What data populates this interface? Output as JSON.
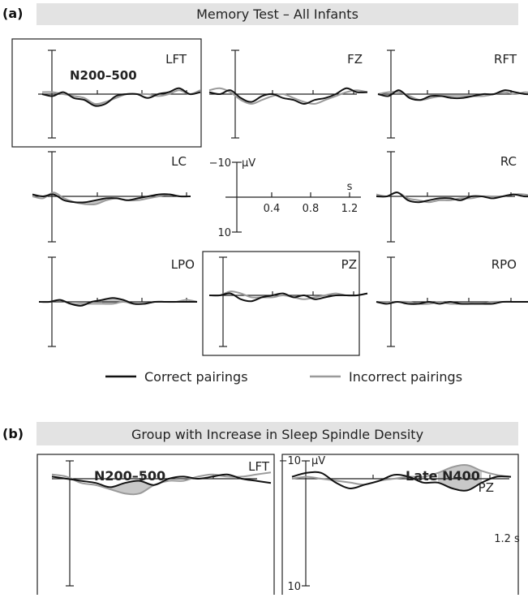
{
  "figure": {
    "part_a": {
      "tag": "(a)",
      "header": "Memory Test – All Infants",
      "colors": {
        "header_bg": "#e3e3e3",
        "correct": "#111111",
        "incorrect": "#9a9a9a",
        "shade": "#c8c8c8"
      }
    },
    "part_b": {
      "tag": "(b)",
      "header": "Group with Increase in Sleep Spindle Density"
    },
    "scale_key": {
      "top_label": "−10",
      "unit": "μV",
      "bottom_label": "10",
      "time_unit": "s",
      "ticks": [
        "0.4",
        "0.8",
        "1.2"
      ]
    },
    "legend": {
      "correct": "Correct pairings",
      "incorrect": "Incorrect pairings"
    }
  },
  "chart_data": [
    {
      "type": "line",
      "panel": "a",
      "x_unit": "s",
      "y_unit": "μV (negative up)",
      "xlim": [
        -0.2,
        1.3
      ],
      "ylim": [
        -10,
        10
      ],
      "highlight_window": "N200–500",
      "x": [
        -0.2,
        -0.1,
        0.0,
        0.1,
        0.2,
        0.3,
        0.4,
        0.5,
        0.6,
        0.7,
        0.8,
        0.9,
        1.0,
        1.1,
        1.2,
        1.3
      ],
      "channels": [
        {
          "name": "LFT",
          "label": "N200–500",
          "boxed": true,
          "shaded": [
            0.2,
            0.5
          ],
          "correct": [
            0,
            1,
            -1,
            2,
            3,
            6,
            5,
            1,
            0,
            0,
            2,
            0,
            -1,
            -3,
            0,
            -1
          ],
          "incorrect": [
            -1,
            -1,
            0,
            1,
            2,
            5,
            4,
            2,
            0,
            0,
            0,
            1,
            0,
            -2,
            0,
            -2
          ]
        },
        {
          "name": "FZ",
          "boxed": false,
          "correct": [
            -1,
            0,
            -2,
            2,
            4,
            1,
            0,
            2,
            3,
            5,
            3,
            2,
            0,
            -3,
            -1,
            -1
          ],
          "incorrect": [
            -2,
            -3,
            -1,
            3,
            5,
            3,
            1,
            0,
            2,
            4,
            5,
            3,
            1,
            -1,
            -2,
            -1
          ]
        },
        {
          "name": "RFT",
          "boxed": false,
          "correct": [
            0,
            1,
            -2,
            2,
            3,
            1,
            1,
            2,
            2,
            1,
            0,
            0,
            -2,
            -1,
            0,
            0
          ],
          "incorrect": [
            0,
            -1,
            -1,
            1,
            3,
            2,
            1,
            1,
            1,
            1,
            1,
            0,
            -1,
            0,
            -1,
            0
          ]
        },
        {
          "name": "LC",
          "boxed": false,
          "shaded": [
            0.2,
            0.5
          ],
          "correct": [
            -1,
            0,
            -1,
            2,
            3,
            3,
            2,
            1,
            1,
            2,
            1,
            0,
            -1,
            -1,
            0,
            0
          ],
          "incorrect": [
            0,
            1,
            -2,
            1,
            3,
            4,
            4,
            2,
            1,
            2,
            2,
            1,
            0,
            -1,
            0,
            0
          ]
        },
        {
          "name": "RC",
          "boxed": false,
          "correct": [
            0,
            0,
            -2,
            2,
            3,
            2,
            1,
            1,
            2,
            0,
            0,
            1,
            0,
            -1,
            0,
            0
          ],
          "incorrect": [
            -1,
            0,
            -2,
            1,
            2,
            3,
            2,
            2,
            1,
            1,
            0,
            0,
            0,
            -1,
            -1,
            0
          ]
        },
        {
          "name": "LPO",
          "boxed": false,
          "shaded": [
            0.4,
            0.7
          ],
          "correct": [
            0,
            0,
            -1,
            1,
            2,
            0,
            -1,
            -2,
            -1,
            1,
            1,
            0,
            0,
            0,
            0,
            0
          ],
          "incorrect": [
            0,
            0,
            -1,
            1,
            1,
            1,
            1,
            1,
            0,
            1,
            1,
            0,
            0,
            0,
            -1,
            0
          ]
        },
        {
          "name": "PZ",
          "boxed": true,
          "correct": [
            0,
            0,
            -1,
            2,
            3,
            1,
            0,
            -1,
            1,
            0,
            2,
            1,
            0,
            0,
            0,
            -1
          ],
          "incorrect": [
            0,
            0,
            -2,
            -1,
            1,
            1,
            1,
            0,
            1,
            2,
            1,
            0,
            -1,
            0,
            0,
            -1
          ]
        },
        {
          "name": "RPO",
          "boxed": false,
          "correct": [
            0,
            1,
            0,
            1,
            1,
            0,
            1,
            0,
            1,
            1,
            1,
            1,
            0,
            0,
            0,
            0
          ],
          "incorrect": [
            0,
            0,
            0,
            0,
            1,
            1,
            0,
            1,
            1,
            1,
            1,
            0,
            0,
            0,
            0,
            0
          ]
        }
      ]
    },
    {
      "type": "line",
      "panel": "b",
      "x_unit": "s",
      "y_unit": "μV (negative up)",
      "xlim": [
        -0.2,
        1.3
      ],
      "ylim": [
        -10,
        10
      ],
      "x": [
        -0.2,
        -0.1,
        0.0,
        0.1,
        0.2,
        0.3,
        0.4,
        0.5,
        0.6,
        0.7,
        0.8,
        0.9,
        1.0,
        1.1,
        1.2,
        1.3
      ],
      "channels": [
        {
          "name": "LFT",
          "label": "N200–500",
          "shaded": [
            0.2,
            0.5
          ],
          "correct": [
            -1,
            0,
            1,
            2,
            4,
            2,
            1,
            3,
            0,
            -1,
            0,
            -1,
            -2,
            0,
            1,
            2
          ],
          "incorrect": [
            -2,
            -1,
            2,
            3,
            5,
            7,
            7,
            3,
            1,
            1,
            -1,
            -2,
            -1,
            -1,
            -2,
            -3
          ]
        },
        {
          "name": "PZ",
          "label": "Late N400",
          "shaded": [
            0.8,
            1.1
          ],
          "tick_label": "1.2 s",
          "correct": [
            -1,
            -3,
            -3,
            2,
            5,
            3,
            1,
            -2,
            -1,
            2,
            2,
            5,
            6,
            2,
            -1,
            -1
          ],
          "incorrect": [
            0,
            -1,
            0,
            1,
            2,
            3,
            1,
            0,
            -1,
            -1,
            -3,
            -6,
            -7,
            -4,
            -2,
            -1
          ]
        }
      ]
    }
  ]
}
